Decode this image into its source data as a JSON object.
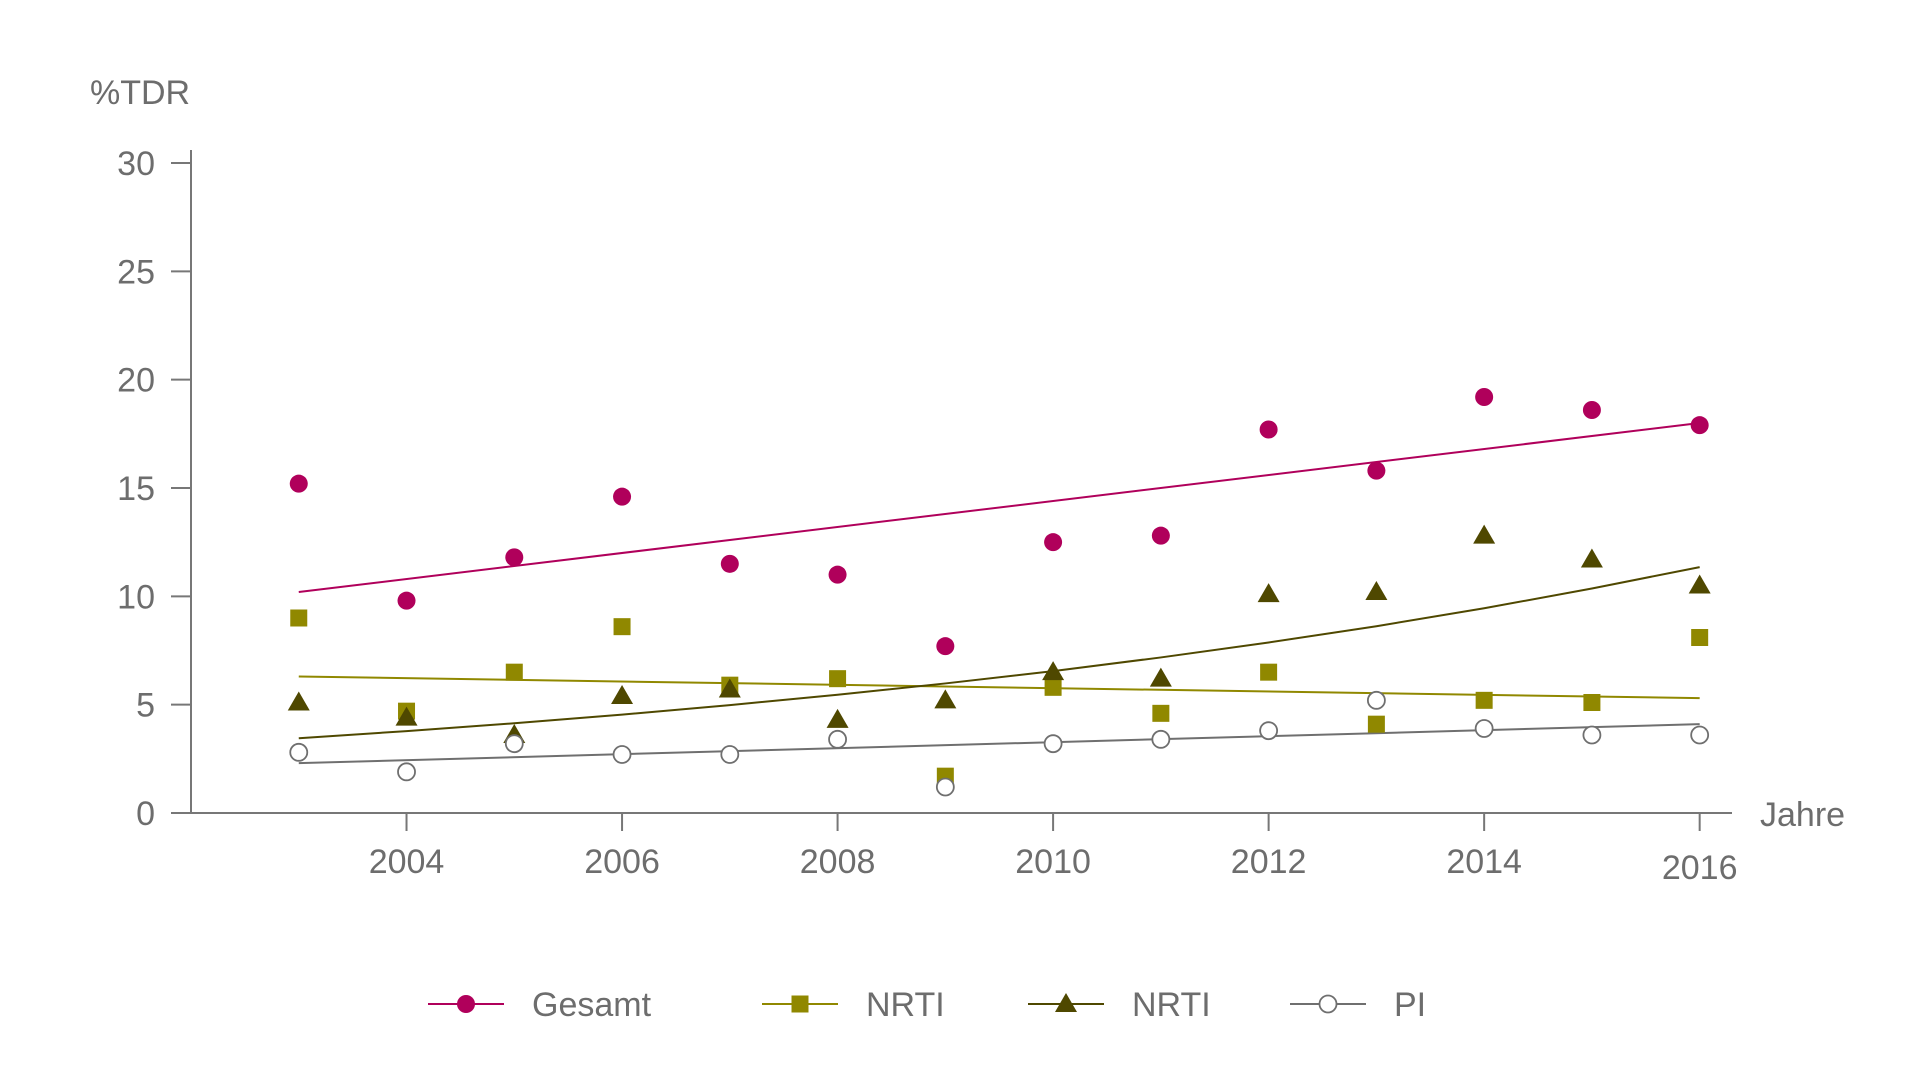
{
  "chart_data": {
    "type": "scatter",
    "title": "",
    "xlabel": "Jahre",
    "ylabel": "%TDR",
    "xlim": [
      2002.0,
      2016.3
    ],
    "ylim": [
      0,
      30
    ],
    "x_ticks": [
      2004,
      2006,
      2008,
      2010,
      2012,
      2014,
      2016
    ],
    "x_tick_labels": [
      "2004",
      "2006",
      "2008",
      "2010",
      "2012",
      "2014",
      "2016"
    ],
    "y_ticks": [
      0,
      5,
      10,
      15,
      20,
      25,
      30
    ],
    "y_tick_labels": [
      "0",
      "5",
      "10",
      "15",
      "20",
      "25",
      "30"
    ],
    "grid": false,
    "legend_position": "bottom",
    "series": [
      {
        "name": "Gesamt",
        "color": "#b0005b",
        "marker": "circle-filled",
        "x": [
          2003,
          2004,
          2005,
          2006,
          2007,
          2008,
          2009,
          2010,
          2011,
          2012,
          2013,
          2014,
          2015,
          2016
        ],
        "values": [
          15.2,
          9.8,
          11.8,
          14.6,
          11.5,
          11.0,
          7.7,
          12.5,
          12.8,
          17.7,
          15.8,
          19.2,
          18.6,
          17.9
        ],
        "trend": {
          "x": [
            2003,
            2016
          ],
          "y": [
            10.2,
            18.0
          ]
        }
      },
      {
        "name": "NRTI",
        "color": "#908800",
        "marker": "square-filled",
        "x": [
          2003,
          2004,
          2005,
          2006,
          2007,
          2008,
          2009,
          2010,
          2011,
          2012,
          2013,
          2014,
          2015,
          2016
        ],
        "values": [
          9.0,
          4.7,
          6.5,
          8.6,
          5.9,
          6.2,
          1.7,
          5.8,
          4.6,
          6.5,
          4.1,
          5.2,
          5.1,
          8.1
        ],
        "trend": {
          "x": [
            2003,
            2016
          ],
          "y": [
            6.3,
            5.3
          ]
        }
      },
      {
        "name": "NRTI",
        "color": "#4f4800",
        "marker": "triangle-filled",
        "x": [
          2003,
          2004,
          2005,
          2006,
          2007,
          2008,
          2009,
          2010,
          2011,
          2012,
          2013,
          2014,
          2015,
          2016
        ],
        "values": [
          5.1,
          4.4,
          3.6,
          5.4,
          5.7,
          4.3,
          5.2,
          6.5,
          6.2,
          10.1,
          10.2,
          12.8,
          11.7,
          10.5
        ],
        "trend": {
          "x": [
            2003,
            2004,
            2005,
            2006,
            2007,
            2008,
            2009,
            2010,
            2011,
            2012,
            2013,
            2014,
            2015,
            2016
          ],
          "y": [
            3.45,
            3.78,
            4.14,
            4.54,
            4.98,
            5.46,
            5.98,
            6.55,
            7.18,
            7.87,
            8.62,
            9.45,
            10.36,
            11.35
          ]
        }
      },
      {
        "name": "PI",
        "color": "#6f6f6f",
        "marker": "circle-open",
        "x": [
          2003,
          2004,
          2005,
          2006,
          2007,
          2008,
          2009,
          2010,
          2011,
          2012,
          2013,
          2014,
          2015,
          2016
        ],
        "values": [
          2.8,
          1.9,
          3.2,
          2.7,
          2.7,
          3.4,
          1.2,
          3.2,
          3.4,
          3.8,
          5.2,
          3.9,
          3.6,
          3.6
        ],
        "trend": {
          "x": [
            2003,
            2016
          ],
          "y": [
            2.3,
            4.1
          ]
        }
      }
    ]
  }
}
